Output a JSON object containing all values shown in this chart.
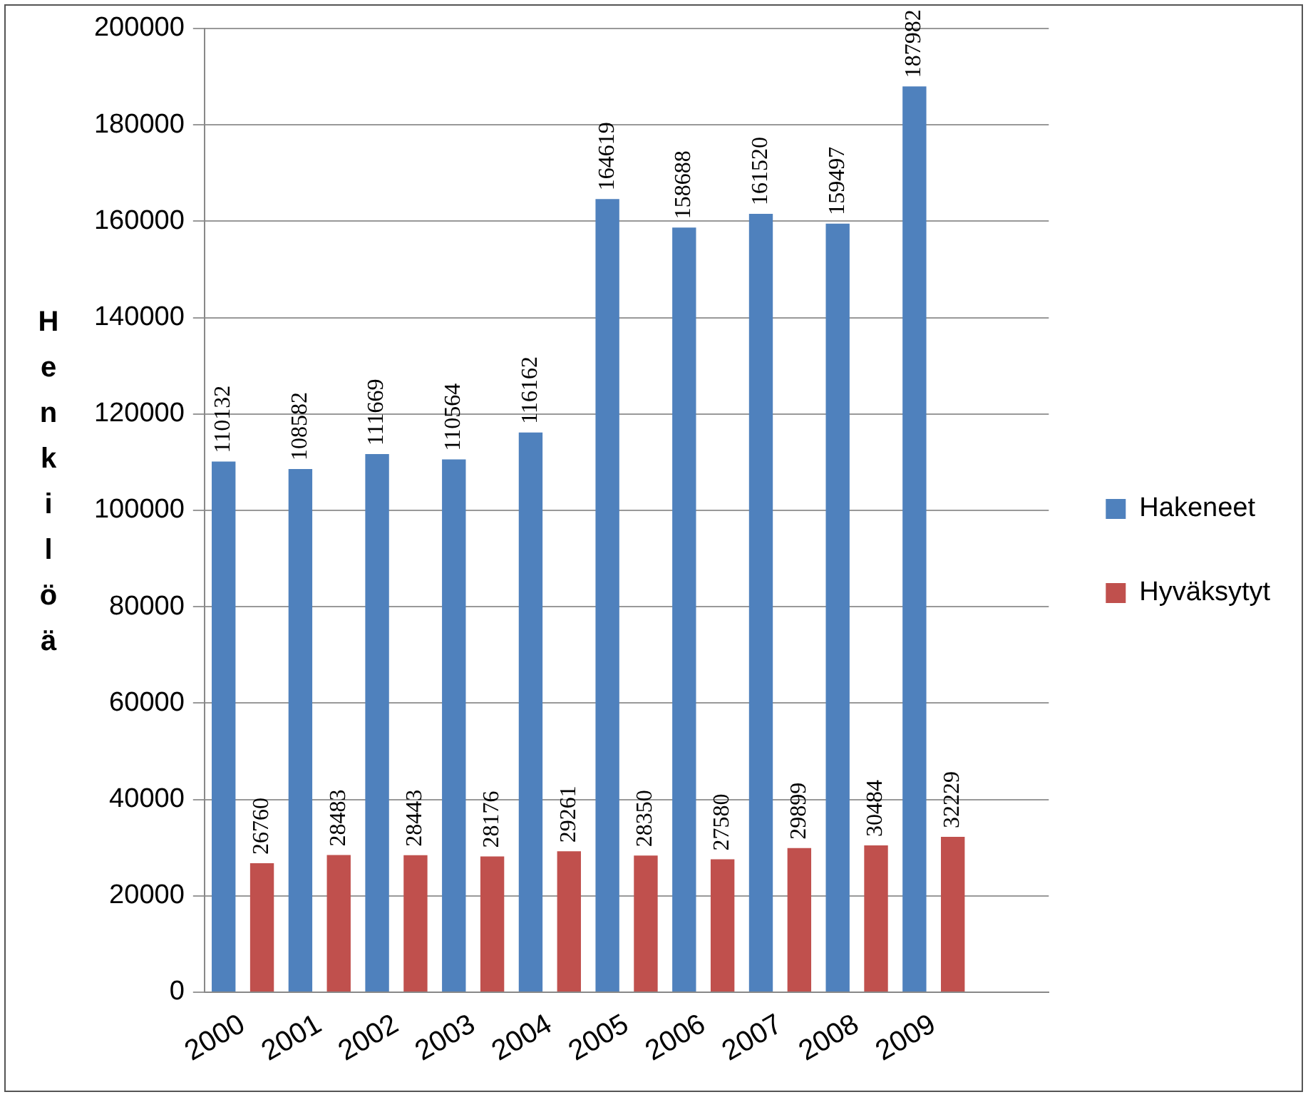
{
  "chart_data": {
    "type": "bar",
    "ylabel": "Henkilöä",
    "categories": [
      "2000",
      "2001",
      "2002",
      "2003",
      "2004",
      "2005",
      "2006",
      "2007",
      "2008",
      "2009",
      null
    ],
    "series": [
      {
        "name": "Hakeneet",
        "color": "#4f81bd",
        "values": [
          110132,
          108582,
          111669,
          110564,
          116162,
          164619,
          158688,
          161520,
          159497,
          187982,
          null
        ]
      },
      {
        "name": "Hyväksytyt",
        "color": "#c0504d",
        "values": [
          26760,
          28483,
          28443,
          28176,
          29261,
          28350,
          27580,
          29899,
          30484,
          32229,
          null
        ]
      }
    ],
    "ylim": [
      0,
      200000
    ],
    "yticks": [
      0,
      20000,
      40000,
      60000,
      80000,
      100000,
      120000,
      140000,
      160000,
      180000,
      200000
    ],
    "grid": "y",
    "legend": "right",
    "data_labels": true
  }
}
